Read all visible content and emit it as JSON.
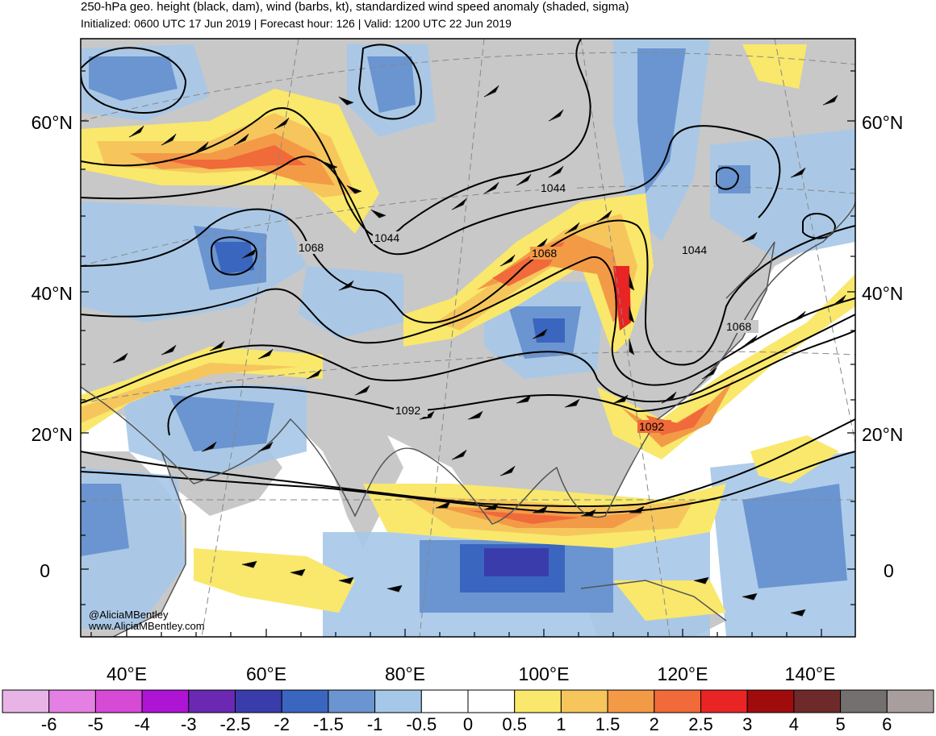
{
  "title": "250-hPa geo. height (black, dam), wind (barbs, kt), standardized wind speed anomaly (shaded, sigma)",
  "subtitle": "Initialized: 0600 UTC 17 Jun 2019 | Forecast hour: 126 | Valid: 1200 UTC 22 Jun 2019",
  "lat_labels": [
    "60°N",
    "40°N",
    "20°N",
    "0"
  ],
  "lon_labels": [
    "40°E",
    "60°E",
    "80°E",
    "100°E",
    "120°E",
    "140°E"
  ],
  "contour_labels": [
    "1044",
    "1044",
    "1044",
    "1068",
    "1068",
    "1068",
    "1092",
    "1092"
  ],
  "credit": [
    "@AliciaMBentley",
    "www.AliciaMBentley.com"
  ],
  "colorbar": {
    "colors": [
      "#e8b4e6",
      "#e480e4",
      "#d64ad6",
      "#ad14d3",
      "#6a28b3",
      "#3a3cab",
      "#3a66bf",
      "#6a95d1",
      "#a6c8e8",
      "#ffffff",
      "#ffffff",
      "#f9e86b",
      "#f6c65c",
      "#f39a47",
      "#f06a3a",
      "#e82424",
      "#a00c0c",
      "#6e2a2a",
      "#757070",
      "#a89e9e"
    ],
    "labels": [
      "-6",
      "-5",
      "-4",
      "-3",
      "-2.5",
      "-2",
      "-1.5",
      "-1",
      "-0.5",
      "0",
      "0.5",
      "1",
      "1.5",
      "2",
      "2.5",
      "3",
      "4",
      "5",
      "6"
    ]
  },
  "colors": {
    "land": "#c8c8c8",
    "ocean": "#ffffff",
    "neg1": "#a6c8e8",
    "neg2": "#6a95d1",
    "neg3": "#3a66bf",
    "neg4": "#3a3cab",
    "pos1": "#f9e86b",
    "pos2": "#f6c65c",
    "pos3": "#f39a47",
    "pos4": "#f06a3a",
    "pos5": "#e82424"
  }
}
